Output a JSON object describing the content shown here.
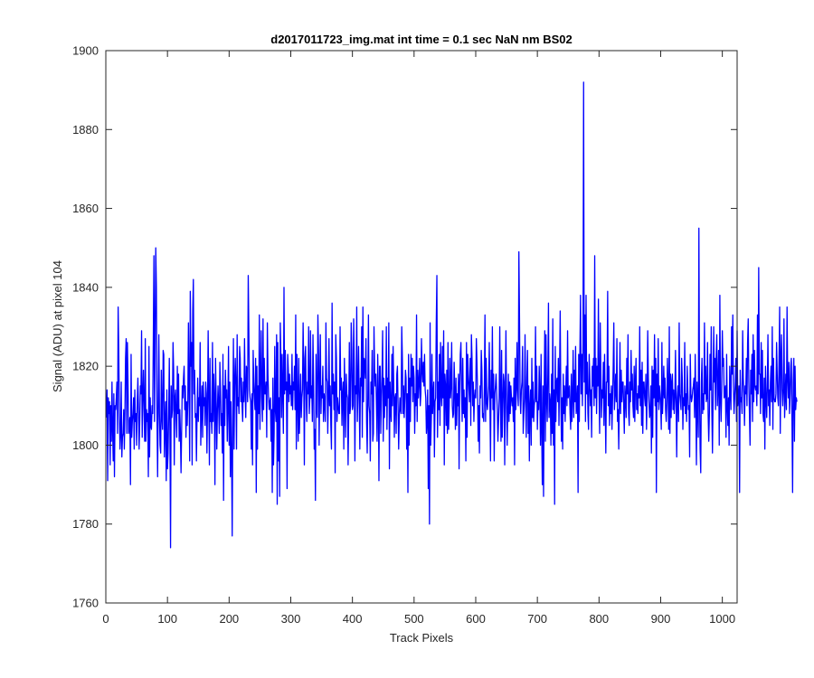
{
  "chart_data": {
    "type": "line",
    "title": "d2017011723_img.mat int time = 0.1 sec  NaN nm BS02",
    "xlabel": "Track Pixels",
    "ylabel": "Signal (ADU) at pixel 104",
    "xlim": [
      0,
      1024
    ],
    "ylim": [
      1760,
      1900
    ],
    "xticks": [
      0,
      100,
      200,
      300,
      400,
      500,
      600,
      700,
      800,
      900,
      1000
    ],
    "yticks": [
      1760,
      1780,
      1800,
      1820,
      1840,
      1860,
      1880,
      1900
    ],
    "grid": false,
    "series": [
      {
        "color": "#0000ff",
        "x_start": 1,
        "x_step": 1,
        "values": [
          1807,
          1814,
          1791,
          1812,
          1808,
          1811,
          1795,
          1810,
          1801,
          1816,
          1804,
          1796,
          1813,
          1792,
          1810,
          1809,
          1812,
          1816,
          1803,
          1835,
          1824,
          1808,
          1799,
          1803,
          1816,
          1797,
          1802,
          1803,
          1809,
          1799,
          1808,
          1822,
          1827,
          1803,
          1826,
          1816,
          1803,
          1805,
          1807,
          1790,
          1823,
          1802,
          1806,
          1808,
          1812,
          1799,
          1814,
          1806,
          1808,
          1800,
          1811,
          1817,
          1809,
          1799,
          1806,
          1815,
          1813,
          1829,
          1802,
          1812,
          1819,
          1810,
          1801,
          1827,
          1801,
          1809,
          1806,
          1808,
          1792,
          1825,
          1797,
          1812,
          1805,
          1804,
          1810,
          1808,
          1826,
          1848,
          1806,
          1827,
          1850,
          1840,
          1808,
          1792,
          1810,
          1828,
          1808,
          1800,
          1798,
          1819,
          1807,
          1804,
          1824,
          1823,
          1797,
          1805,
          1811,
          1791,
          1814,
          1794,
          1798,
          1808,
          1822,
          1803,
          1774,
          1815,
          1807,
          1809,
          1826,
          1819,
          1795,
          1812,
          1814,
          1807,
          1802,
          1820,
          1808,
          1818,
          1801,
          1809,
          1803,
          1793,
          1804,
          1815,
          1812,
          1817,
          1820,
          1809,
          1815,
          1802,
          1811,
          1805,
          1811,
          1831,
          1815,
          1796,
          1839,
          1820,
          1826,
          1795,
          1834,
          1842,
          1813,
          1819,
          1807,
          1808,
          1796,
          1808,
          1817,
          1806,
          1812,
          1810,
          1826,
          1800,
          1809,
          1815,
          1802,
          1816,
          1810,
          1812,
          1805,
          1816,
          1813,
          1798,
          1810,
          1829,
          1812,
          1795,
          1822,
          1806,
          1808,
          1803,
          1826,
          1806,
          1818,
          1812,
          1790,
          1822,
          1811,
          1799,
          1809,
          1815,
          1810,
          1803,
          1821,
          1814,
          1805,
          1808,
          1798,
          1823,
          1786,
          1815,
          1805,
          1819,
          1812,
          1814,
          1801,
          1810,
          1825,
          1800,
          1816,
          1792,
          1811,
          1798,
          1777,
          1808,
          1827,
          1799,
          1816,
          1822,
          1815,
          1799,
          1828,
          1810,
          1812,
          1808,
          1825,
          1822,
          1811,
          1817,
          1810,
          1806,
          1816,
          1811,
          1827,
          1814,
          1807,
          1820,
          1819,
          1811,
          1843,
          1829,
          1814,
          1812,
          1811,
          1799,
          1813,
          1795,
          1824,
          1816,
          1812,
          1809,
          1822,
          1788,
          1820,
          1799,
          1815,
          1808,
          1833,
          1804,
          1817,
          1829,
          1812,
          1806,
          1832,
          1809,
          1822,
          1813,
          1813,
          1816,
          1802,
          1831,
          1818,
          1812,
          1809,
          1811,
          1812,
          1801,
          1809,
          1788,
          1817,
          1795,
          1803,
          1825,
          1809,
          1806,
          1828,
          1785,
          1826,
          1796,
          1812,
          1787,
          1831,
          1822,
          1807,
          1823,
          1813,
          1803,
          1840,
          1813,
          1824,
          1814,
          1816,
          1789,
          1823,
          1819,
          1811,
          1818,
          1813,
          1815,
          1810,
          1823,
          1809,
          1816,
          1814,
          1820,
          1809,
          1833,
          1799,
          1823,
          1812,
          1801,
          1822,
          1803,
          1810,
          1818,
          1807,
          1812,
          1814,
          1831,
          1819,
          1795,
          1822,
          1825,
          1812,
          1806,
          1816,
          1813,
          1830,
          1808,
          1812,
          1829,
          1812,
          1815,
          1806,
          1828,
          1816,
          1799,
          1804,
          1786,
          1823,
          1810,
          1807,
          1833,
          1824,
          1800,
          1816,
          1828,
          1808,
          1815,
          1812,
          1820,
          1806,
          1813,
          1811,
          1806,
          1831,
          1817,
          1816,
          1803,
          1812,
          1827,
          1810,
          1815,
          1805,
          1799,
          1836,
          1813,
          1818,
          1809,
          1816,
          1793,
          1828,
          1822,
          1806,
          1812,
          1810,
          1808,
          1808,
          1830,
          1814,
          1817,
          1805,
          1813,
          1816,
          1799,
          1822,
          1811,
          1802,
          1818,
          1813,
          1812,
          1795,
          1808,
          1826,
          1808,
          1810,
          1831,
          1824,
          1809,
          1810,
          1832,
          1820,
          1796,
          1815,
          1813,
          1835,
          1806,
          1814,
          1825,
          1812,
          1799,
          1817,
          1815,
          1830,
          1802,
          1835,
          1811,
          1822,
          1821,
          1817,
          1827,
          1806,
          1798,
          1812,
          1833,
          1810,
          1808,
          1796,
          1816,
          1813,
          1824,
          1801,
          1803,
          1830,
          1819,
          1815,
          1818,
          1810,
          1801,
          1823,
          1813,
          1791,
          1820,
          1820,
          1803,
          1812,
          1818,
          1829,
          1801,
          1817,
          1807,
          1815,
          1810,
          1830,
          1804,
          1817,
          1812,
          1831,
          1794,
          1816,
          1809,
          1806,
          1823,
          1810,
          1825,
          1815,
          1802,
          1812,
          1813,
          1803,
          1818,
          1820,
          1810,
          1799,
          1807,
          1812,
          1809,
          1808,
          1830,
          1822,
          1808,
          1815,
          1807,
          1812,
          1819,
          1817,
          1799,
          1813,
          1788,
          1823,
          1800,
          1817,
          1806,
          1823,
          1815,
          1822,
          1811,
          1820,
          1817,
          1803,
          1813,
          1810,
          1833,
          1806,
          1819,
          1812,
          1816,
          1822,
          1810,
          1813,
          1827,
          1819,
          1816,
          1821,
          1815,
          1823,
          1814,
          1812,
          1803,
          1806,
          1814,
          1789,
          1810,
          1780,
          1831,
          1800,
          1807,
          1823,
          1808,
          1813,
          1816,
          1797,
          1811,
          1812,
          1831,
          1843,
          1802,
          1816,
          1809,
          1823,
          1805,
          1826,
          1813,
          1810,
          1825,
          1812,
          1829,
          1795,
          1818,
          1815,
          1805,
          1819,
          1803,
          1826,
          1804,
          1810,
          1822,
          1812,
          1815,
          1826,
          1810,
          1807,
          1808,
          1821,
          1814,
          1804,
          1817,
          1805,
          1813,
          1810,
          1818,
          1794,
          1815,
          1823,
          1826,
          1814,
          1806,
          1822,
          1808,
          1814,
          1807,
          1812,
          1796,
          1826,
          1802,
          1823,
          1818,
          1814,
          1811,
          1822,
          1805,
          1828,
          1822,
          1810,
          1816,
          1806,
          1812,
          1814,
          1812,
          1827,
          1821,
          1813,
          1801,
          1810,
          1798,
          1815,
          1812,
          1824,
          1819,
          1807,
          1808,
          1806,
          1815,
          1833,
          1806,
          1822,
          1811,
          1809,
          1812,
          1815,
          1826,
          1811,
          1796,
          1819,
          1812,
          1830,
          1809,
          1818,
          1796,
          1813,
          1815,
          1818,
          1813,
          1809,
          1801,
          1806,
          1812,
          1830,
          1812,
          1801,
          1824,
          1802,
          1810,
          1818,
          1816,
          1795,
          1813,
          1829,
          1811,
          1800,
          1809,
          1818,
          1806,
          1816,
          1808,
          1815,
          1812,
          1810,
          1812,
          1806,
          1817,
          1795,
          1822,
          1809,
          1814,
          1826,
          1814,
          1810,
          1849,
          1833,
          1812,
          1808,
          1814,
          1816,
          1825,
          1803,
          1808,
          1812,
          1828,
          1811,
          1802,
          1817,
          1824,
          1803,
          1815,
          1796,
          1810,
          1814,
          1800,
          1822,
          1807,
          1816,
          1806,
          1810,
          1812,
          1830,
          1811,
          1820,
          1804,
          1811,
          1809,
          1820,
          1813,
          1800,
          1823,
          1804,
          1790,
          1815,
          1787,
          1813,
          1829,
          1801,
          1828,
          1812,
          1806,
          1818,
          1836,
          1807,
          1813,
          1811,
          1800,
          1818,
          1803,
          1832,
          1800,
          1814,
          1785,
          1825,
          1806,
          1816,
          1817,
          1811,
          1822,
          1805,
          1818,
          1834,
          1813,
          1801,
          1812,
          1799,
          1818,
          1808,
          1815,
          1806,
          1813,
          1820,
          1810,
          1829,
          1812,
          1813,
          1815,
          1808,
          1804,
          1818,
          1806,
          1812,
          1824,
          1807,
          1819,
          1811,
          1825,
          1808,
          1810,
          1815,
          1788,
          1823,
          1806,
          1824,
          1838,
          1813,
          1823,
          1810,
          1826,
          1892,
          1816,
          1833,
          1806,
          1838,
          1813,
          1821,
          1808,
          1804,
          1823,
          1817,
          1810,
          1814,
          1802,
          1820,
          1815,
          1822,
          1810,
          1848,
          1812,
          1822,
          1808,
          1820,
          1815,
          1837,
          1814,
          1803,
          1831,
          1818,
          1807,
          1814,
          1812,
          1821,
          1805,
          1823,
          1811,
          1798,
          1816,
          1816,
          1839,
          1810,
          1820,
          1805,
          1813,
          1808,
          1815,
          1804,
          1812,
          1820,
          1831,
          1809,
          1813,
          1818,
          1811,
          1827,
          1806,
          1809,
          1799,
          1812,
          1826,
          1808,
          1819,
          1811,
          1816,
          1816,
          1810,
          1803,
          1815,
          1812,
          1807,
          1822,
          1813,
          1828,
          1808,
          1805,
          1816,
          1811,
          1824,
          1814,
          1818,
          1810,
          1807,
          1820,
          1806,
          1816,
          1822,
          1809,
          1813,
          1808,
          1815,
          1812,
          1830,
          1810,
          1819,
          1805,
          1821,
          1803,
          1816,
          1816,
          1812,
          1810,
          1818,
          1804,
          1812,
          1829,
          1817,
          1811,
          1807,
          1808,
          1815,
          1798,
          1820,
          1802,
          1819,
          1812,
          1828,
          1810,
          1822,
          1788,
          1818,
          1811,
          1827,
          1809,
          1815,
          1813,
          1810,
          1804,
          1826,
          1808,
          1813,
          1820,
          1812,
          1817,
          1809,
          1806,
          1811,
          1822,
          1814,
          1804,
          1830,
          1803,
          1818,
          1807,
          1816,
          1818,
          1809,
          1814,
          1808,
          1812,
          1824,
          1811,
          1797,
          1812,
          1815,
          1806,
          1831,
          1813,
          1811,
          1809,
          1822,
          1817,
          1804,
          1812,
          1810,
          1826,
          1808,
          1813,
          1806,
          1820,
          1814,
          1809,
          1810,
          1797,
          1823,
          1813,
          1811,
          1812,
          1814,
          1815,
          1817,
          1807,
          1823,
          1812,
          1795,
          1816,
          1809,
          1802,
          1855,
          1814,
          1799,
          1793,
          1816,
          1822,
          1808,
          1813,
          1809,
          1831,
          1813,
          1820,
          1811,
          1812,
          1826,
          1808,
          1801,
          1808,
          1823,
          1814,
          1830,
          1809,
          1798,
          1812,
          1830,
          1816,
          1822,
          1809,
          1822,
          1828,
          1810,
          1815,
          1824,
          1800,
          1838,
          1812,
          1806,
          1814,
          1829,
          1820,
          1822,
          1812,
          1813,
          1815,
          1802,
          1823,
          1810,
          1805,
          1812,
          1800,
          1820,
          1814,
          1809,
          1830,
          1818,
          1833,
          1815,
          1808,
          1812,
          1816,
          1822,
          1806,
          1829,
          1810,
          1812,
          1815,
          1788,
          1819,
          1811,
          1812,
          1808,
          1829,
          1817,
          1813,
          1805,
          1815,
          1813,
          1822,
          1810,
          1826,
          1832,
          1816,
          1808,
          1800,
          1819,
          1813,
          1823,
          1806,
          1828,
          1811,
          1824,
          1815,
          1814,
          1815,
          1810,
          1833,
          1813,
          1845,
          1818,
          1818,
          1808,
          1826,
          1812,
          1824,
          1808,
          1806,
          1817,
          1799,
          1820,
          1812,
          1807,
          1815,
          1828,
          1810,
          1814,
          1805,
          1816,
          1820,
          1811,
          1830,
          1804,
          1822,
          1812,
          1811,
          1811,
          1813,
          1826,
          1818,
          1812,
          1810,
          1822,
          1835,
          1803,
          1822,
          1828,
          1814,
          1810,
          1814,
          1832,
          1807,
          1812,
          1818,
          1809,
          1835,
          1817,
          1812,
          1821,
          1808,
          1813,
          1820,
          1822,
          1806,
          1788,
          1816,
          1822,
          1801,
          1820,
          1809,
          1812,
          1811
        ]
      }
    ]
  }
}
